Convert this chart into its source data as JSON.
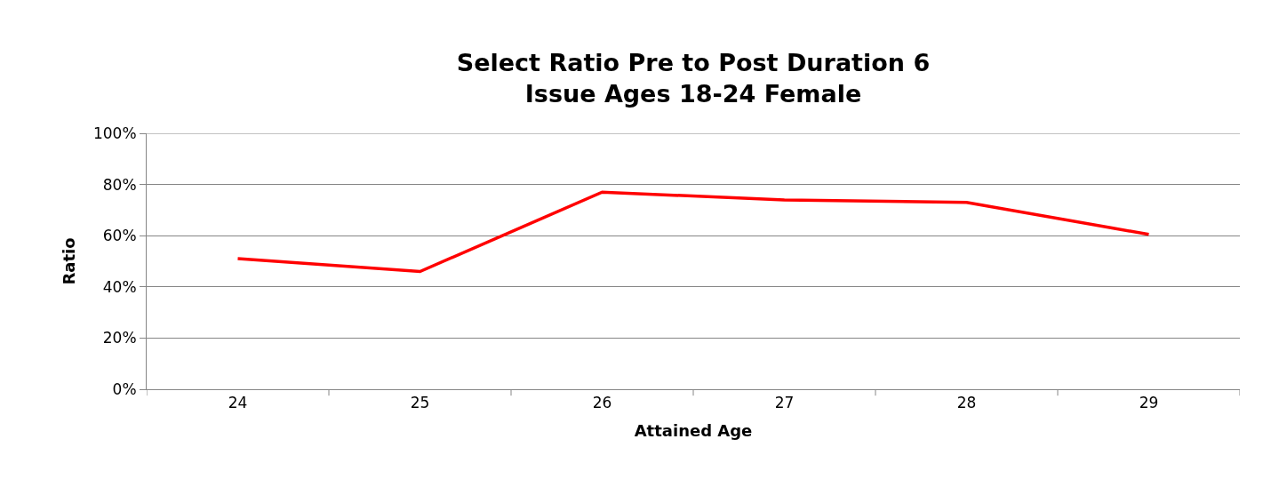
{
  "chart_data": {
    "type": "line",
    "title": "Select Ratio Pre to Post Duration 6\nIssue Ages 18-24 Female",
    "xlabel": "Attained Age",
    "ylabel": "Ratio",
    "categories": [
      "24",
      "25",
      "26",
      "27",
      "28",
      "29"
    ],
    "series": [
      {
        "color": "#ff0000",
        "values": [
          51,
          46,
          77,
          74,
          73,
          60.5
        ]
      }
    ],
    "ylim": [
      0,
      100
    ],
    "yticks": [
      {
        "value": 0,
        "label": "0%"
      },
      {
        "value": 20,
        "label": "20%"
      },
      {
        "value": 40,
        "label": "40%"
      },
      {
        "value": 60,
        "label": "60%"
      },
      {
        "value": 80,
        "label": "80%"
      },
      {
        "value": 100,
        "label": "100%"
      }
    ],
    "grid": "y",
    "marker": "none",
    "line_style": "solid"
  }
}
